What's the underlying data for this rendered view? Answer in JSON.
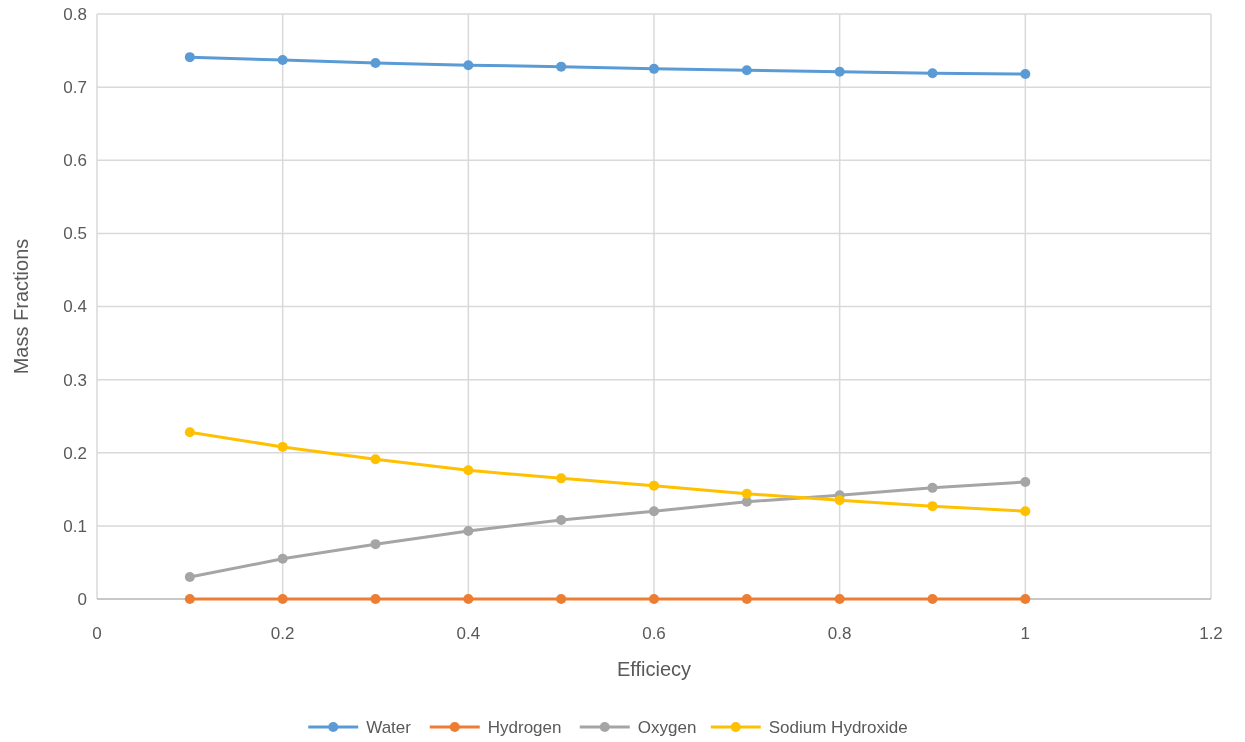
{
  "chart_data": {
    "type": "line",
    "xlabel": "Efficiecy",
    "ylabel": "Mass Fractions",
    "x": [
      0.1,
      0.2,
      0.3,
      0.4,
      0.5,
      0.6,
      0.7,
      0.8,
      0.9,
      1
    ],
    "series": [
      {
        "name": "Water",
        "color": "#5b9bd5",
        "values": [
          0.741,
          0.737,
          0.733,
          0.73,
          0.728,
          0.725,
          0.723,
          0.721,
          0.719,
          0.718
        ]
      },
      {
        "name": "Hydrogen",
        "color": "#ed7d31",
        "values": [
          0,
          0,
          0,
          0,
          0,
          0,
          0,
          0,
          0,
          0
        ]
      },
      {
        "name": "Oxygen",
        "color": "#a5a5a5",
        "values": [
          0.03,
          0.055,
          0.075,
          0.093,
          0.108,
          0.12,
          0.133,
          0.142,
          0.152,
          0.16
        ]
      },
      {
        "name": "Sodium Hydroxide",
        "color": "#ffc000",
        "values": [
          0.228,
          0.208,
          0.191,
          0.176,
          0.165,
          0.155,
          0.144,
          0.135,
          0.127,
          0.12
        ]
      }
    ],
    "xlim": [
      0,
      1.2
    ],
    "xticks": [
      0,
      0.2,
      0.4,
      0.6,
      0.8,
      1,
      1.2
    ],
    "ylim": [
      0,
      0.8
    ],
    "yticks": [
      0,
      0.1,
      0.2,
      0.3,
      0.4,
      0.5,
      0.6,
      0.7,
      0.8
    ],
    "grid": true,
    "legend": "bottom",
    "marker": "circle",
    "line_style": "solid"
  }
}
